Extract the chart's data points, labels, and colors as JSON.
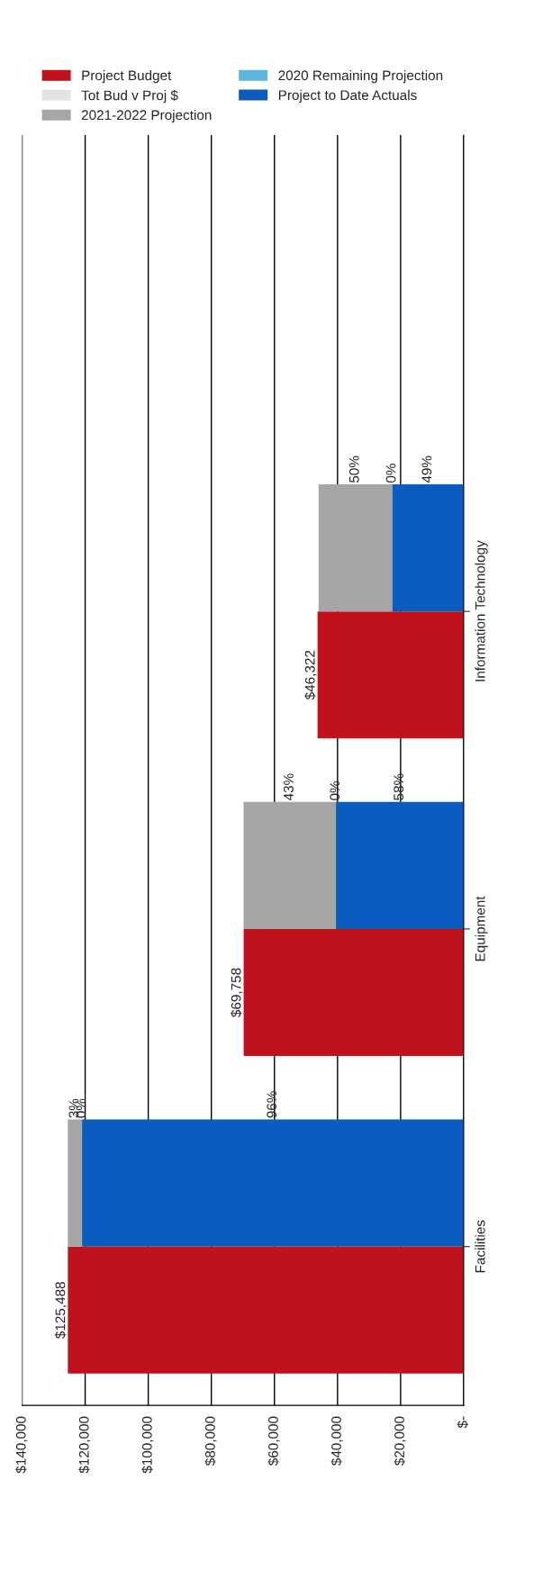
{
  "chart_data": {
    "type": "bar",
    "orientation": "horizontal",
    "categories": [
      "Information Technology",
      "Equipment",
      "Facilities"
    ],
    "series": [
      {
        "name": "Project Budget",
        "color": "#c0121c",
        "values": [
          46322,
          69758,
          125488
        ],
        "value_labels": [
          "$46,322",
          "$69,758",
          "$125,488"
        ]
      },
      {
        "name": "Project to Date Actuals",
        "color": "#0b5cbf",
        "values": [
          22700,
          40500,
          121000
        ],
        "base": [
          0,
          0,
          0
        ]
      },
      {
        "name": "2020 Remaining Projection",
        "color": "#5bb7e0",
        "values": [
          0,
          0,
          0
        ]
      },
      {
        "name": "2021-2022 Projection",
        "color": "#a6a6a6",
        "values": [
          23300,
          29300,
          4500
        ],
        "base": [
          22700,
          40500,
          121000
        ]
      },
      {
        "name": "Tot Bud v Proj $",
        "color": "#e4e4e4",
        "values": [
          null,
          null,
          null
        ]
      }
    ],
    "annotations": [
      "49%",
      "0%",
      "50%",
      "58%",
      "0%",
      "43%",
      "96%",
      "0%",
      "3%"
    ],
    "xlim": [
      140000,
      0
    ],
    "xticks": [
      {
        "value": 140000,
        "label": "$140,000"
      },
      {
        "value": 120000,
        "label": "$120,000"
      },
      {
        "value": 100000,
        "label": "$100,000"
      },
      {
        "value": 80000,
        "label": "$80,000"
      },
      {
        "value": 60000,
        "label": "$60,000"
      },
      {
        "value": 40000,
        "label": "$40,000"
      },
      {
        "value": 20000,
        "label": "$20,000"
      },
      {
        "value": 0,
        "label": "$-"
      }
    ],
    "grid": "x",
    "legend": "top"
  }
}
